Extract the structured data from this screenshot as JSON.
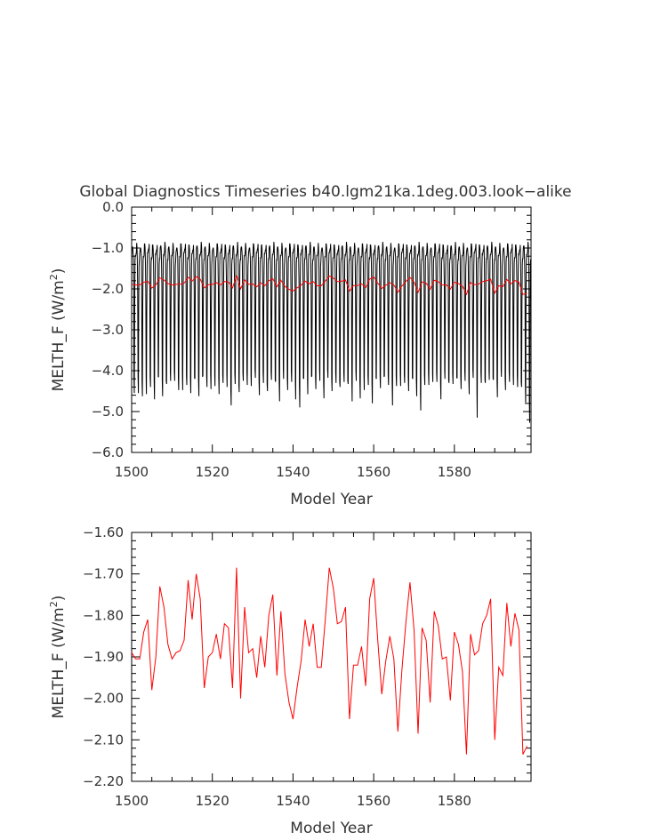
{
  "figure": {
    "title": "Global Diagnostics Timeseries b40.lgm21ka.1deg.003.look−alike"
  },
  "colors": {
    "monthly": "#000000",
    "annual": "#ff0000",
    "axis": "#000000"
  },
  "chart_data": [
    {
      "type": "line",
      "panel": "top",
      "xlabel": "Model Year",
      "ylabel": "MELTH_F (W/m²)",
      "ylabel_parts": {
        "pre": "MELTH_F (W/m",
        "sup": "2",
        "post": ")"
      },
      "xlim": [
        1500,
        1599
      ],
      "ylim": [
        -6.0,
        0.0
      ],
      "x_ticks": [
        1500,
        1520,
        1540,
        1560,
        1580
      ],
      "y_ticks": [
        0.0,
        -1.0,
        -2.0,
        -3.0,
        -4.0,
        -5.0,
        -6.0
      ],
      "y_tick_labels": [
        "0.0",
        "−1.0",
        "−2.0",
        "−3.0",
        "−4.0",
        "−5.0",
        "−6.0"
      ],
      "series": [
        {
          "color": "#000000",
          "kind": "monthly",
          "x_start": 1500,
          "seasonal_cycle": [
            -1.2,
            -1.1,
            -1.0,
            -0.95,
            -1.0,
            -1.3,
            -2.0,
            -3.5,
            -4.3,
            -2.5,
            -1.4,
            -1.2
          ],
          "annual_minima": [
            -4.5,
            -4.6,
            -4.55,
            -4.6,
            -4.3,
            -4.7,
            -4.25,
            -4.6,
            -4.4,
            -4.2,
            -4.3,
            -4.4,
            -4.5,
            -4.25,
            -4.55,
            -4.3,
            -4.6,
            -4.2,
            -4.35,
            -4.5,
            -4.3,
            -4.6,
            -4.2,
            -4.4,
            -4.95,
            -4.3,
            -4.6,
            -4.2,
            -4.4,
            -4.3,
            -4.2,
            -4.5,
            -4.3,
            -4.6,
            -4.2,
            -4.35,
            -4.7,
            -4.25,
            -4.4,
            -4.3,
            -4.6,
            -4.9,
            -4.3,
            -4.55,
            -4.2,
            -4.4,
            -4.3,
            -4.6,
            -4.2,
            -4.4,
            -4.3,
            -4.5,
            -4.25,
            -4.4,
            -4.7,
            -4.3,
            -4.6,
            -4.5,
            -4.25,
            -4.8,
            -4.3,
            -4.4,
            -4.2,
            -4.3,
            -4.9,
            -4.3,
            -4.4,
            -4.2,
            -4.5,
            -4.3,
            -4.6,
            -5.05,
            -4.3,
            -4.4,
            -4.2,
            -4.3,
            -4.6,
            -4.2,
            -4.4,
            -4.3,
            -4.25,
            -4.4,
            -4.3,
            -4.5,
            -4.2,
            -5.05,
            -4.3,
            -4.4,
            -4.2,
            -4.3,
            -4.6,
            -4.2,
            -4.4,
            -4.3,
            -4.25,
            -4.4,
            -4.5,
            -4.8,
            -5.35
          ]
        },
        {
          "color": "#ff0000",
          "kind": "annual",
          "x_start": 1500,
          "values": [
            -1.89,
            -1.905,
            -1.905,
            -1.84,
            -1.81,
            -1.98,
            -1.9,
            -1.73,
            -1.78,
            -1.87,
            -1.905,
            -1.89,
            -1.885,
            -1.86,
            -1.715,
            -1.81,
            -1.7,
            -1.76,
            -1.975,
            -1.9,
            -1.89,
            -1.845,
            -1.905,
            -1.82,
            -1.83,
            -1.975,
            -1.685,
            -2.0,
            -1.78,
            -1.89,
            -1.88,
            -1.95,
            -1.85,
            -1.925,
            -1.8,
            -1.75,
            -1.945,
            -1.79,
            -1.94,
            -2.01,
            -2.05,
            -1.975,
            -1.91,
            -1.81,
            -1.875,
            -1.82,
            -1.925,
            -1.925,
            -1.81,
            -1.685,
            -1.735,
            -1.82,
            -1.815,
            -1.78,
            -2.05,
            -1.92,
            -1.92,
            -1.875,
            -1.97,
            -1.76,
            -1.71,
            -1.86,
            -1.99,
            -1.91,
            -1.85,
            -1.905,
            -2.08,
            -1.93,
            -1.815,
            -1.72,
            -1.835,
            -2.085,
            -1.83,
            -1.86,
            -2.01,
            -1.79,
            -1.825,
            -1.905,
            -1.9,
            -2.005,
            -1.84,
            -1.87,
            -1.935,
            -2.135,
            -1.845,
            -1.895,
            -1.885,
            -1.82,
            -1.8,
            -1.76,
            -2.1,
            -1.925,
            -1.945,
            -1.77,
            -1.875,
            -1.795,
            -1.835,
            -2.135,
            -2.115
          ]
        }
      ]
    },
    {
      "type": "line",
      "panel": "bottom",
      "xlabel": "Model Year",
      "ylabel": "MELTH_F (W/m²)",
      "ylabel_parts": {
        "pre": "MELTH_F (W/m",
        "sup": "2",
        "post": ")"
      },
      "xlim": [
        1500,
        1599
      ],
      "ylim": [
        -2.2,
        -1.6
      ],
      "x_ticks": [
        1500,
        1520,
        1540,
        1560,
        1580
      ],
      "y_ticks": [
        -1.6,
        -1.7,
        -1.8,
        -1.9,
        -2.0,
        -2.1,
        -2.2
      ],
      "y_tick_labels": [
        "−1.60",
        "−1.70",
        "−1.80",
        "−1.90",
        "−2.00",
        "−2.10",
        "−2.20"
      ],
      "series": [
        {
          "color": "#ff0000",
          "kind": "annual",
          "x_start": 1500,
          "values_ref": "top.annual"
        }
      ]
    }
  ]
}
